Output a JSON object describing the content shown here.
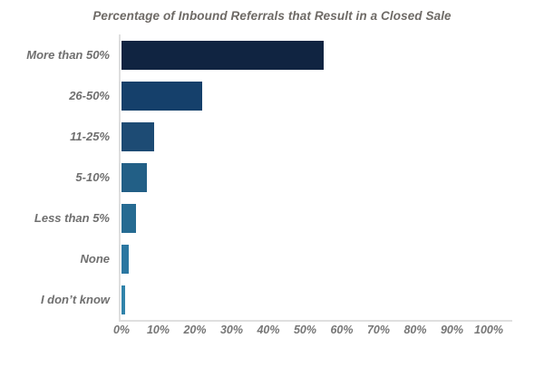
{
  "title": "Percentage of Inbound Referrals that Result in a Closed Sale",
  "chart_data": {
    "type": "bar",
    "orientation": "horizontal",
    "title": "Percentage of Inbound Referrals that Result in a Closed Sale",
    "categories": [
      "More than 50%",
      "26-50%",
      "11-25%",
      "5-10%",
      "Less than 5%",
      "None",
      "I don’t know"
    ],
    "values": [
      55,
      22,
      9,
      7,
      4,
      2,
      1
    ],
    "unit": "%",
    "xlim": [
      0,
      100
    ],
    "x_tick_labels": [
      "0%",
      "10%",
      "20%",
      "30%",
      "40%",
      "50%",
      "60%",
      "70%",
      "80%",
      "90%",
      "100%"
    ],
    "grid": false,
    "legend": "none",
    "bar_colors": [
      "#102441",
      "#15406b",
      "#1d4b74",
      "#225f86",
      "#266b92",
      "#2b77a1",
      "#3183aa"
    ],
    "colors": {
      "background": "#ffffff",
      "title_text": "#6e6a66",
      "category_text": "#6f6f6f",
      "tick_text": "#767676",
      "axis_line": "#dfdfdf"
    }
  }
}
